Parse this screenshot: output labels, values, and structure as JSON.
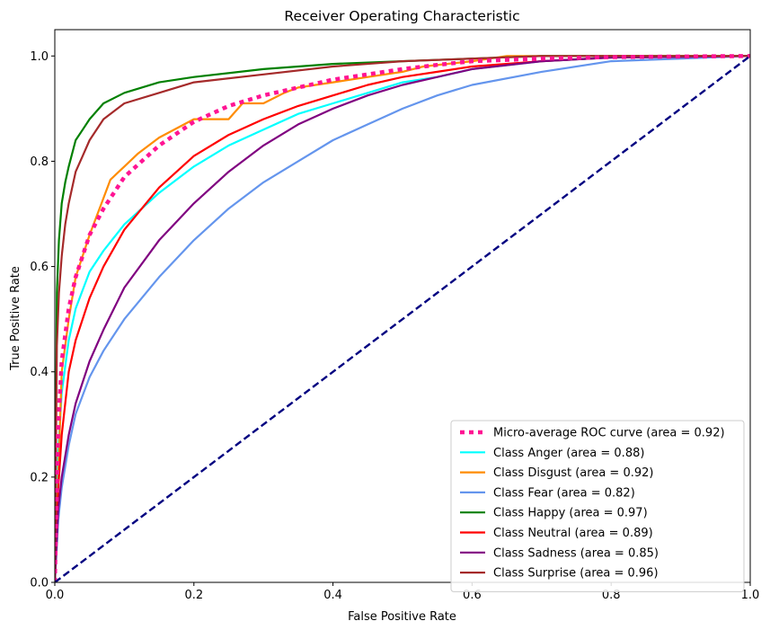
{
  "chart_data": {
    "type": "line",
    "title": "Receiver Operating Characteristic",
    "xlabel": "False Positive Rate",
    "ylabel": "True Positive Rate",
    "xlim": [
      0.0,
      1.0
    ],
    "ylim": [
      0.0,
      1.05
    ],
    "x_ticks": [
      "0.0",
      "0.2",
      "0.4",
      "0.6",
      "0.8",
      "1.0"
    ],
    "y_ticks": [
      "0.0",
      "0.2",
      "0.4",
      "0.6",
      "0.8",
      "1.0"
    ],
    "grid": false,
    "legend_position": "bottom-right",
    "diagonal": {
      "x": [
        0,
        1
      ],
      "y": [
        0,
        1
      ],
      "color": "#000080",
      "style": "dashed"
    },
    "series": [
      {
        "name": "Micro-average ROC curve (area = 0.92)",
        "color": "#ff1493",
        "style": "dotted",
        "x": [
          0,
          0.005,
          0.01,
          0.02,
          0.03,
          0.05,
          0.07,
          0.1,
          0.15,
          0.2,
          0.25,
          0.3,
          0.35,
          0.4,
          0.45,
          0.5,
          0.55,
          0.6,
          0.7,
          0.8,
          1.0
        ],
        "y": [
          0,
          0.3,
          0.42,
          0.52,
          0.58,
          0.66,
          0.71,
          0.77,
          0.83,
          0.875,
          0.905,
          0.925,
          0.94,
          0.955,
          0.965,
          0.975,
          0.983,
          0.99,
          0.995,
          0.998,
          1.0
        ]
      },
      {
        "name": "Class Anger (area = 0.88)",
        "color": "#00ffff",
        "style": "solid",
        "x": [
          0,
          0.005,
          0.01,
          0.02,
          0.03,
          0.05,
          0.07,
          0.1,
          0.15,
          0.2,
          0.25,
          0.3,
          0.35,
          0.4,
          0.45,
          0.5,
          0.55,
          0.6,
          0.7,
          0.8,
          1.0
        ],
        "y": [
          0,
          0.25,
          0.36,
          0.46,
          0.52,
          0.59,
          0.63,
          0.68,
          0.74,
          0.79,
          0.83,
          0.86,
          0.89,
          0.91,
          0.93,
          0.95,
          0.96,
          0.975,
          0.99,
          0.997,
          1.0
        ]
      },
      {
        "name": "Class Disgust (area = 0.92)",
        "color": "#ff8c00",
        "style": "solid",
        "x": [
          0,
          0.01,
          0.02,
          0.03,
          0.05,
          0.07,
          0.08,
          0.1,
          0.12,
          0.15,
          0.2,
          0.25,
          0.27,
          0.3,
          0.33,
          0.35,
          0.4,
          0.45,
          0.5,
          0.53,
          0.6,
          0.65,
          0.7,
          0.8,
          1.0
        ],
        "y": [
          0,
          0.4,
          0.5,
          0.58,
          0.66,
          0.73,
          0.765,
          0.79,
          0.815,
          0.845,
          0.88,
          0.88,
          0.91,
          0.91,
          0.93,
          0.94,
          0.95,
          0.96,
          0.97,
          0.98,
          0.99,
          1.0,
          1.0,
          1.0,
          1.0
        ]
      },
      {
        "name": "Class Fear (area = 0.82)",
        "color": "#6495ed",
        "style": "solid",
        "x": [
          0,
          0.005,
          0.01,
          0.02,
          0.03,
          0.05,
          0.07,
          0.1,
          0.15,
          0.2,
          0.25,
          0.3,
          0.35,
          0.4,
          0.45,
          0.5,
          0.55,
          0.6,
          0.7,
          0.8,
          1.0
        ],
        "y": [
          0,
          0.12,
          0.18,
          0.26,
          0.32,
          0.39,
          0.44,
          0.5,
          0.58,
          0.65,
          0.71,
          0.76,
          0.8,
          0.84,
          0.87,
          0.9,
          0.925,
          0.945,
          0.97,
          0.99,
          1.0
        ]
      },
      {
        "name": "Class Happy (area = 0.97)",
        "color": "#008000",
        "style": "solid",
        "x": [
          0,
          0.003,
          0.006,
          0.01,
          0.015,
          0.02,
          0.03,
          0.04,
          0.05,
          0.07,
          0.1,
          0.15,
          0.2,
          0.3,
          0.4,
          0.5,
          0.6,
          0.7,
          0.8,
          1.0
        ],
        "y": [
          0,
          0.55,
          0.65,
          0.72,
          0.76,
          0.79,
          0.84,
          0.86,
          0.88,
          0.91,
          0.93,
          0.95,
          0.96,
          0.975,
          0.985,
          0.99,
          0.995,
          1.0,
          1.0,
          1.0
        ]
      },
      {
        "name": "Class Neutral (area = 0.89)",
        "color": "#ff0000",
        "style": "solid",
        "x": [
          0,
          0.005,
          0.01,
          0.02,
          0.03,
          0.05,
          0.07,
          0.1,
          0.15,
          0.2,
          0.25,
          0.3,
          0.35,
          0.4,
          0.45,
          0.5,
          0.55,
          0.6,
          0.7,
          0.8,
          1.0
        ],
        "y": [
          0,
          0.18,
          0.28,
          0.4,
          0.46,
          0.54,
          0.6,
          0.67,
          0.75,
          0.81,
          0.85,
          0.88,
          0.905,
          0.925,
          0.945,
          0.96,
          0.97,
          0.98,
          0.99,
          0.997,
          1.0
        ]
      },
      {
        "name": "Class Sadness (area = 0.85)",
        "color": "#800080",
        "style": "solid",
        "x": [
          0,
          0.005,
          0.01,
          0.02,
          0.03,
          0.05,
          0.07,
          0.1,
          0.15,
          0.2,
          0.25,
          0.3,
          0.35,
          0.4,
          0.45,
          0.5,
          0.55,
          0.6,
          0.7,
          0.8,
          1.0
        ],
        "y": [
          0,
          0.14,
          0.2,
          0.28,
          0.34,
          0.42,
          0.48,
          0.56,
          0.65,
          0.72,
          0.78,
          0.83,
          0.87,
          0.9,
          0.925,
          0.945,
          0.96,
          0.975,
          0.99,
          0.997,
          1.0
        ]
      },
      {
        "name": "Class Surprise (area = 0.96)",
        "color": "#a52a2a",
        "style": "solid",
        "x": [
          0,
          0.003,
          0.006,
          0.01,
          0.015,
          0.02,
          0.03,
          0.04,
          0.05,
          0.07,
          0.1,
          0.15,
          0.2,
          0.3,
          0.4,
          0.5,
          0.6,
          0.7,
          0.8,
          1.0
        ],
        "y": [
          0,
          0.45,
          0.55,
          0.62,
          0.68,
          0.72,
          0.78,
          0.81,
          0.84,
          0.88,
          0.91,
          0.93,
          0.95,
          0.965,
          0.98,
          0.99,
          0.995,
          1.0,
          1.0,
          1.0
        ]
      }
    ]
  }
}
